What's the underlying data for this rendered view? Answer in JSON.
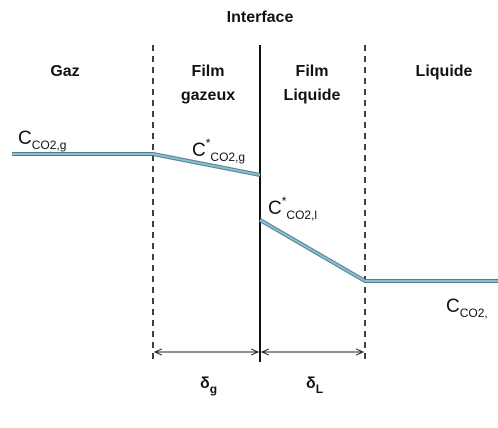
{
  "title": "Interface",
  "zones": [
    {
      "lines": [
        "Gaz"
      ]
    },
    {
      "lines": [
        "Film",
        "gazeux"
      ]
    },
    {
      "lines": [
        "Film",
        "Liquide"
      ]
    },
    {
      "lines": [
        "Liquide"
      ]
    }
  ],
  "concentrations": [
    {
      "main": "C",
      "sub": "CO2,g"
    },
    {
      "main": "C",
      "sup": "*",
      "sub": "CO2,g"
    },
    {
      "main": "C",
      "sup": "*",
      "sub": "CO2,l"
    },
    {
      "main": "C",
      "sub": "CO2,"
    }
  ],
  "thicknesses": [
    {
      "main": "δ",
      "sub": "g"
    },
    {
      "main": "δ",
      "sub": "L"
    }
  ]
}
